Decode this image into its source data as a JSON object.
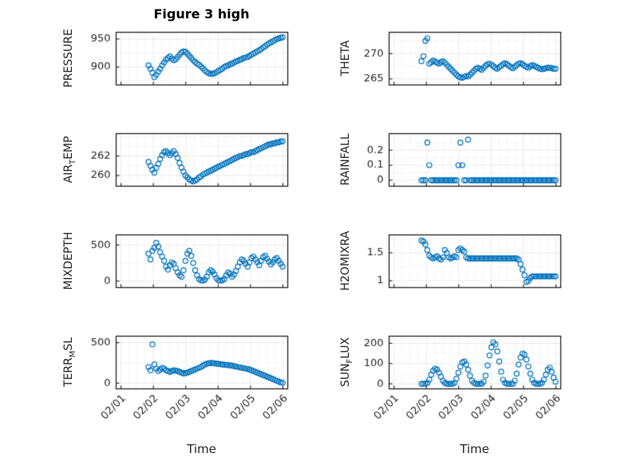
{
  "title": "Figure 3 high",
  "xlabel": "Time",
  "colors": {
    "marker": "#0072BD",
    "axis": "#222222",
    "text": "#262626",
    "grid_major": "#c6c6c6",
    "grid_minor": "#e2e2e2"
  },
  "chart_data": {
    "type": "scatter",
    "title": "Figure 3 high",
    "xlabel": "Time",
    "legend": "none",
    "grid": "dotted major+minor",
    "xlim": [
      -0.15,
      5.15
    ],
    "x_ticks": {
      "values": [
        0,
        1,
        2,
        3,
        4,
        5
      ],
      "labels": [
        "02/01",
        "02/02",
        "02/03",
        "02/04",
        "02/05",
        "02/06"
      ]
    },
    "x": [
      0.85,
      0.91,
      0.97,
      1.03,
      1.09,
      1.15,
      1.21,
      1.27,
      1.33,
      1.39,
      1.45,
      1.51,
      1.57,
      1.63,
      1.69,
      1.75,
      1.81,
      1.87,
      1.93,
      1.99,
      2.05,
      2.11,
      2.17,
      2.23,
      2.29,
      2.35,
      2.41,
      2.47,
      2.53,
      2.59,
      2.65,
      2.71,
      2.77,
      2.83,
      2.89,
      2.95,
      3.01,
      3.07,
      3.13,
      3.19,
      3.25,
      3.31,
      3.37,
      3.43,
      3.49,
      3.55,
      3.61,
      3.67,
      3.73,
      3.79,
      3.85,
      3.91,
      3.97,
      4.03,
      4.09,
      4.15,
      4.21,
      4.27,
      4.33,
      4.39,
      4.45,
      4.51,
      4.57,
      4.63,
      4.69,
      4.75,
      4.81,
      4.87,
      4.93,
      4.99
    ],
    "plots": [
      {
        "name": "PRESSURE",
        "row": 0,
        "col": 0,
        "ylabel": {
          "pre": "PRESSURE",
          "sub": "",
          "post": ""
        },
        "ylim": [
          868,
          962
        ],
        "yticks": [
          900,
          950
        ],
        "ytick_labels": [
          "900",
          "950"
        ],
        "y": [
          903,
          897,
          890,
          882,
          886,
          892,
          897,
          903,
          908,
          913,
          916,
          919,
          915,
          912,
          914,
          918,
          922,
          926,
          928,
          927,
          924,
          920,
          916,
          912,
          909,
          906,
          904,
          901,
          898,
          894,
          891,
          889,
          888,
          888,
          889,
          891,
          893,
          895,
          897,
          900,
          902,
          903,
          905,
          906,
          908,
          910,
          911,
          913,
          914,
          916,
          917,
          918,
          920,
          922,
          924,
          926,
          928,
          930,
          932,
          935,
          937,
          940,
          942,
          944,
          946,
          948,
          950,
          951,
          952,
          953
        ]
      },
      {
        "name": "THETA",
        "row": 0,
        "col": 1,
        "ylabel": {
          "pre": "THETA",
          "sub": "",
          "post": ""
        },
        "ylim": [
          263.8,
          274.2
        ],
        "yticks": [
          265,
          270
        ],
        "ytick_labels": [
          "265",
          "270"
        ],
        "y": [
          268.5,
          269.5,
          272.5,
          273.0,
          268.0,
          268.3,
          268.6,
          268.4,
          268.2,
          268.0,
          268.3,
          268.5,
          268.2,
          267.8,
          267.4,
          267.0,
          266.6,
          266.2,
          265.8,
          265.5,
          265.3,
          265.2,
          265.4,
          265.6,
          265.5,
          265.8,
          266.2,
          266.6,
          267.0,
          267.2,
          267.0,
          266.8,
          267.2,
          267.6,
          267.9,
          268.0,
          267.8,
          267.5,
          267.2,
          267.0,
          267.3,
          267.6,
          267.9,
          268.1,
          267.9,
          267.6,
          267.3,
          267.1,
          267.4,
          267.7,
          268.0,
          268.1,
          267.9,
          267.6,
          267.4,
          267.2,
          267.5,
          267.7,
          267.6,
          267.4,
          267.2,
          267.0,
          266.9,
          267.0,
          267.1,
          267.2,
          267.2,
          267.1,
          267.0,
          267.0
        ]
      },
      {
        "name": "AIR_TEMP",
        "row": 1,
        "col": 0,
        "ylabel": {
          "pre": "AIR",
          "sub": "T",
          "post": "EMP"
        },
        "ylim": [
          258.9,
          264.3
        ],
        "yticks": [
          260,
          262
        ],
        "ytick_labels": [
          "260",
          "262"
        ],
        "y": [
          261.4,
          261.0,
          260.6,
          260.3,
          260.8,
          261.2,
          261.7,
          262.1,
          262.4,
          262.5,
          262.3,
          262.1,
          262.3,
          262.5,
          262.2,
          261.8,
          261.3,
          260.8,
          260.4,
          260.0,
          259.8,
          259.6,
          259.5,
          259.4,
          259.5,
          259.6,
          259.8,
          259.9,
          260.1,
          260.2,
          260.3,
          260.4,
          260.5,
          260.6,
          260.7,
          260.8,
          260.9,
          261.0,
          261.1,
          261.2,
          261.3,
          261.4,
          261.5,
          261.6,
          261.7,
          261.8,
          261.9,
          262.0,
          262.0,
          262.1,
          262.2,
          262.2,
          262.3,
          262.4,
          262.4,
          262.5,
          262.6,
          262.7,
          262.8,
          262.9,
          263.0,
          263.1,
          263.2,
          263.2,
          263.3,
          263.3,
          263.4,
          263.4,
          263.5,
          263.5
        ]
      },
      {
        "name": "RAINFALL",
        "row": 1,
        "col": 1,
        "ylabel": {
          "pre": "RAINFALL",
          "sub": "",
          "post": ""
        },
        "ylim": [
          -0.04,
          0.31
        ],
        "yticks": [
          0,
          0.1,
          0.2
        ],
        "ytick_labels": [
          "0",
          "0.1",
          "0.2"
        ],
        "y": [
          0,
          0,
          0,
          0.25,
          0.1,
          0,
          0,
          0,
          0,
          0,
          0,
          0,
          0,
          0,
          0,
          0,
          0,
          0,
          0,
          0.1,
          0.25,
          0.1,
          0,
          0,
          0.27,
          0,
          0,
          0,
          0,
          0,
          0,
          0,
          0,
          0,
          0,
          0,
          0,
          0,
          0,
          0,
          0,
          0,
          0,
          0,
          0,
          0,
          0,
          0,
          0,
          0,
          0,
          0,
          0,
          0,
          0,
          0,
          0,
          0,
          0,
          0,
          0,
          0,
          0,
          0,
          0,
          0,
          0,
          0,
          0,
          0
        ]
      },
      {
        "name": "MIXDEPTH",
        "row": 2,
        "col": 0,
        "ylabel": {
          "pre": "MIXDEPTH",
          "sub": "",
          "post": ""
        },
        "ylim": [
          -90,
          640
        ],
        "yticks": [
          0,
          500
        ],
        "ytick_labels": [
          "0",
          "500"
        ],
        "y": [
          380,
          300,
          420,
          460,
          530,
          480,
          400,
          340,
          280,
          200,
          160,
          220,
          260,
          240,
          180,
          120,
          80,
          60,
          150,
          280,
          380,
          420,
          350,
          250,
          150,
          80,
          30,
          10,
          5,
          20,
          60,
          120,
          150,
          130,
          90,
          40,
          10,
          5,
          10,
          30,
          80,
          120,
          100,
          60,
          90,
          140,
          200,
          260,
          300,
          280,
          240,
          200,
          260,
          320,
          340,
          300,
          260,
          220,
          280,
          330,
          350,
          310,
          270,
          230,
          260,
          300,
          320,
          280,
          240,
          200
        ]
      },
      {
        "name": "H2OMIXRA",
        "row": 2,
        "col": 1,
        "ylabel": {
          "pre": "H2OMIXRA",
          "sub": "",
          "post": ""
        },
        "ylim": [
          0.88,
          1.82
        ],
        "yticks": [
          1,
          1.5
        ],
        "ytick_labels": [
          "1",
          "1.5"
        ],
        "y": [
          1.72,
          1.7,
          1.65,
          1.55,
          1.45,
          1.42,
          1.4,
          1.42,
          1.44,
          1.4,
          1.38,
          1.42,
          1.55,
          1.5,
          1.42,
          1.4,
          1.42,
          1.44,
          1.42,
          1.55,
          1.58,
          1.55,
          1.52,
          1.42,
          1.4,
          1.4,
          1.4,
          1.4,
          1.4,
          1.4,
          1.4,
          1.4,
          1.4,
          1.4,
          1.4,
          1.4,
          1.4,
          1.4,
          1.4,
          1.4,
          1.4,
          1.4,
          1.4,
          1.4,
          1.4,
          1.4,
          1.4,
          1.4,
          1.4,
          1.4,
          1.38,
          1.3,
          1.2,
          1.1,
          0.98,
          1.0,
          1.05,
          1.08,
          1.08,
          1.08,
          1.08,
          1.08,
          1.08,
          1.08,
          1.08,
          1.08,
          1.08,
          1.08,
          1.08,
          1.08
        ]
      },
      {
        "name": "TERR_MSL",
        "row": 3,
        "col": 0,
        "ylabel": {
          "pre": "TERR",
          "sub": "M",
          "post": "SL"
        },
        "ylim": [
          -70,
          580
        ],
        "yticks": [
          0,
          500
        ],
        "ytick_labels": [
          "0",
          "500"
        ],
        "y": [
          200,
          160,
          480,
          230,
          180,
          150,
          170,
          190,
          180,
          160,
          150,
          140,
          150,
          160,
          155,
          150,
          140,
          130,
          120,
          125,
          130,
          140,
          150,
          160,
          170,
          180,
          190,
          200,
          215,
          230,
          240,
          245,
          250,
          248,
          245,
          240,
          238,
          235,
          230,
          228,
          225,
          222,
          220,
          215,
          210,
          205,
          200,
          195,
          190,
          185,
          180,
          175,
          170,
          160,
          150,
          140,
          130,
          120,
          110,
          100,
          90,
          80,
          70,
          60,
          50,
          40,
          30,
          20,
          10,
          5
        ]
      },
      {
        "name": "SUN_FLUX",
        "row": 3,
        "col": 1,
        "ylabel": {
          "pre": "SUN",
          "sub": "F",
          "post": "LUX"
        },
        "ylim": [
          -25,
          235
        ],
        "yticks": [
          0,
          100,
          200
        ],
        "ytick_labels": [
          "0",
          "100",
          "200"
        ],
        "y": [
          0,
          0,
          0,
          5,
          20,
          45,
          65,
          75,
          70,
          55,
          35,
          15,
          5,
          0,
          0,
          0,
          0,
          5,
          25,
          55,
          85,
          105,
          110,
          95,
          70,
          40,
          15,
          5,
          0,
          0,
          0,
          0,
          10,
          40,
          90,
          140,
          180,
          205,
          195,
          160,
          110,
          60,
          20,
          5,
          0,
          0,
          0,
          0,
          15,
          50,
          95,
          130,
          150,
          145,
          120,
          85,
          50,
          20,
          5,
          0,
          0,
          0,
          5,
          20,
          45,
          70,
          80,
          60,
          30,
          10
        ]
      }
    ]
  }
}
